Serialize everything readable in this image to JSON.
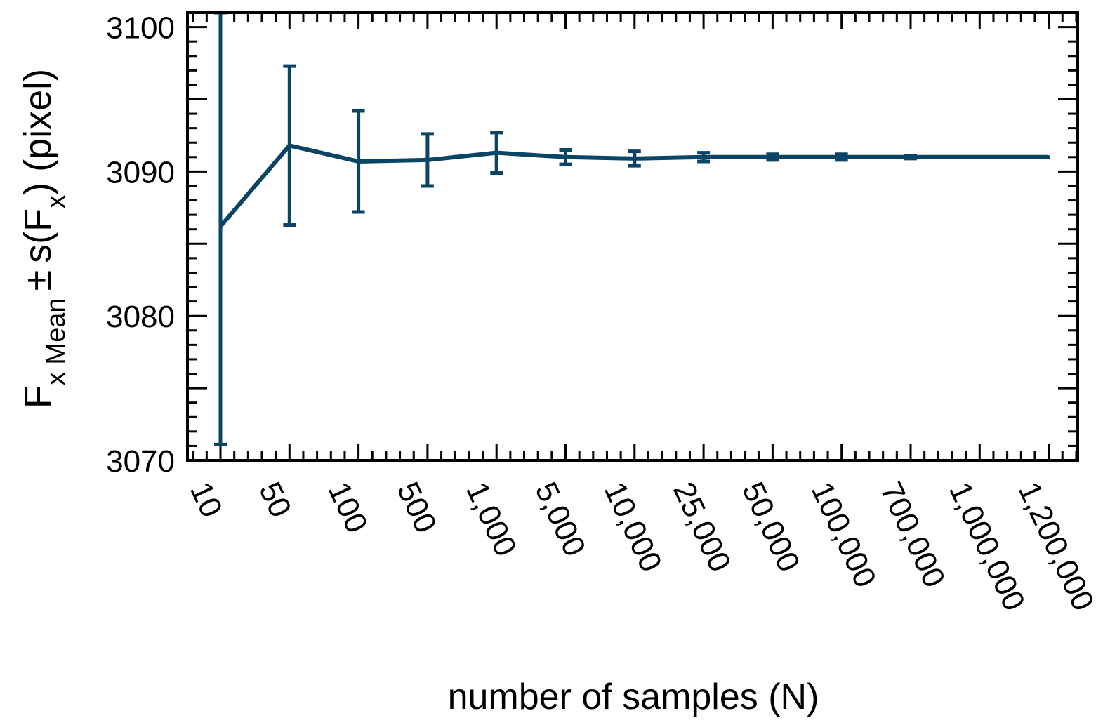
{
  "chart_data": {
    "type": "line",
    "title": "",
    "xlabel": "number of samples (N)",
    "ylabel": {
      "main": "F",
      "sub1": "x Mean",
      "pm": "±",
      "s_open": "s(F",
      "sub2": "x",
      "tail": ") (pixel)"
    },
    "categories": [
      "10",
      "50",
      "100",
      "500",
      "1,000",
      "5,000",
      "10,000",
      "25,000",
      "50,000",
      "100,000",
      "700,000",
      "1,000,000",
      "1,200,000"
    ],
    "ylim": [
      3070,
      3101
    ],
    "yticks": [
      3070,
      3080,
      3090,
      3100
    ],
    "ytick_labels": [
      "3070",
      "3080",
      "3090",
      "3100"
    ],
    "grid": false,
    "legend": false,
    "line_color": "#0b4566",
    "series": [
      {
        "values": [
          3086.2,
          3091.8,
          3090.7,
          3090.8,
          3091.3,
          3091.0,
          3090.9,
          3091.0,
          3091.0,
          3091.0,
          3091.0,
          3091.0,
          3091.0
        ],
        "errors": [
          15.1,
          5.5,
          3.5,
          1.8,
          1.4,
          0.5,
          0.5,
          0.3,
          0.2,
          0.2,
          0.1,
          0.0,
          0.0
        ]
      }
    ]
  }
}
